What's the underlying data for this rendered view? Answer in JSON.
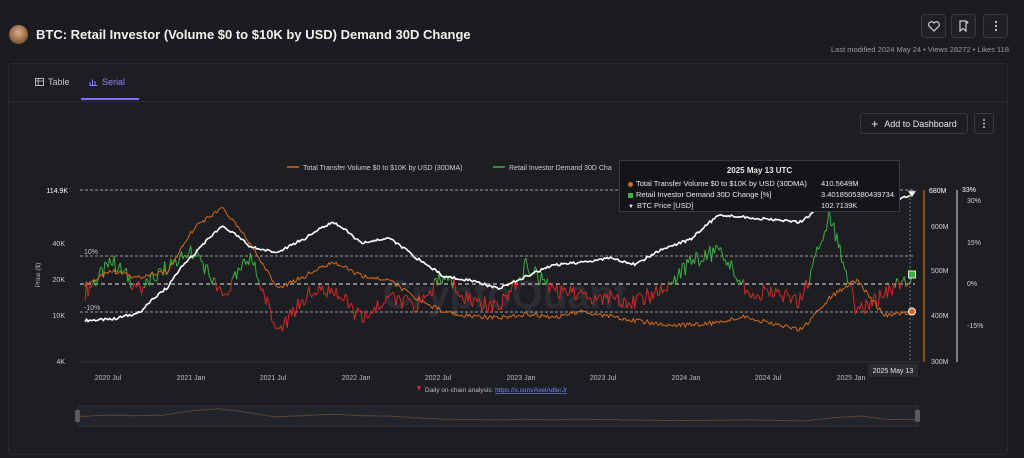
{
  "header": {
    "title": "BTC: Retail Investor (Volume $0 to $10K by USD) Demand 30D Change",
    "meta": "Last modified 2024 May 24 • Views 28272 • Likes 118",
    "heart_icon": "heart-icon",
    "bookmark_icon": "bookmark-icon",
    "more_icon": "more-vertical-icon"
  },
  "tabs": [
    {
      "label": "Table",
      "icon": "table-icon",
      "active": false
    },
    {
      "label": "Serial",
      "icon": "chart-icon",
      "active": true
    }
  ],
  "toolbar": {
    "add_label": "Add to Dashboard"
  },
  "legend": {
    "series1": "Total Transfer Volume $0 to $10K by USD (30DMA)",
    "series2": "Retail Investor Demand 30D Cha"
  },
  "tooltip": {
    "title": "2025 May 13 UTC",
    "rows": [
      {
        "label": "Total Transfer Volume $0 to $10K by USD (30DMA)",
        "value": "410.5649M",
        "color": "#d2691e"
      },
      {
        "label": "Retail Investor Demand 30D Change [%]",
        "value": "3.4018505380439734",
        "color": "#3cb043"
      },
      {
        "label": "BTC Price [USD]",
        "value": "102.7139K",
        "color": "#ffffff"
      }
    ]
  },
  "footer": {
    "source_prefix": "Daily on-chain analysis: ",
    "source_link": "https://x.com/AxelAdlerJr",
    "crosshair_date": "2025 May 13",
    "watermark": "CryptoQuant"
  },
  "chart_data": {
    "type": "line",
    "x_ticks": [
      "2020 Jul",
      "2021 Jan",
      "2021 Jul",
      "2022 Jan",
      "2022 Jul",
      "2023 Jan",
      "2023 Jul",
      "2024 Jan",
      "2024 Jul",
      "2025 Jan"
    ],
    "price_axis": {
      "label": "Price ($)",
      "ticks": [
        "4K",
        "10K",
        "20K",
        "40K"
      ],
      "max_label": "114.9K",
      "scale": "log"
    },
    "volume_axis": {
      "ticks": [
        "300M",
        "400M",
        "500M",
        "600M"
      ],
      "max_label": "680M"
    },
    "pct_axis": {
      "ticks": [
        "-15%",
        "0%",
        "15%",
        "30%"
      ],
      "max_label": "33%"
    },
    "bands": [
      "10%",
      "-10%"
    ],
    "series": [
      {
        "name": "Total Transfer Volume $0 to $10K by USD (30DMA)",
        "color": "#d2691e",
        "x": [
          "2020-05",
          "2020-07",
          "2020-09",
          "2020-11",
          "2021-01",
          "2021-03",
          "2021-05",
          "2021-07",
          "2021-09",
          "2021-11",
          "2022-01",
          "2022-03",
          "2022-05",
          "2022-07",
          "2022-09",
          "2022-11",
          "2023-01",
          "2023-03",
          "2023-05",
          "2023-07",
          "2023-09",
          "2023-11",
          "2024-01",
          "2024-03",
          "2024-05",
          "2024-07",
          "2024-09",
          "2024-11",
          "2025-01",
          "2025-03",
          "2025-05"
        ],
        "values": [
          470,
          500,
          485,
          500,
          600,
          640,
          560,
          460,
          490,
          520,
          490,
          480,
          440,
          410,
          400,
          395,
          405,
          395,
          410,
          400,
          390,
          380,
          380,
          385,
          400,
          380,
          370,
          440,
          480,
          400,
          410
        ]
      },
      {
        "name": "Retail Investor Demand 30D Change [%]",
        "color_pos": "#3cb043",
        "color_neg": "#d62828",
        "x": [
          "2020-05",
          "2020-07",
          "2020-09",
          "2020-11",
          "2021-01",
          "2021-03",
          "2021-05",
          "2021-07",
          "2021-09",
          "2021-11",
          "2022-01",
          "2022-03",
          "2022-05",
          "2022-07",
          "2022-09",
          "2022-11",
          "2023-01",
          "2023-03",
          "2023-05",
          "2023-07",
          "2023-09",
          "2023-11",
          "2024-01",
          "2024-03",
          "2024-05",
          "2024-07",
          "2024-09",
          "2024-11",
          "2025-01",
          "2025-03",
          "2025-05"
        ],
        "values": [
          -3,
          8,
          -2,
          6,
          12,
          -5,
          10,
          -18,
          -4,
          -2,
          -12,
          -5,
          -8,
          3,
          -6,
          -9,
          7,
          -3,
          -4,
          -5,
          -6,
          -2,
          8,
          12,
          -2,
          -4,
          -6,
          25,
          -10,
          -4,
          3.4
        ]
      },
      {
        "name": "BTC Price [USD]",
        "color": "#ffffff",
        "x": [
          "2020-05",
          "2020-07",
          "2020-09",
          "2020-11",
          "2021-01",
          "2021-03",
          "2021-05",
          "2021-07",
          "2021-09",
          "2021-11",
          "2022-01",
          "2022-03",
          "2022-05",
          "2022-07",
          "2022-09",
          "2022-11",
          "2023-01",
          "2023-03",
          "2023-05",
          "2023-07",
          "2023-09",
          "2023-11",
          "2024-01",
          "2024-03",
          "2024-05",
          "2024-07",
          "2024-09",
          "2024-11",
          "2025-01",
          "2025-03",
          "2025-05"
        ],
        "values": [
          9000,
          9200,
          10500,
          17000,
          33000,
          55000,
          37000,
          33000,
          44000,
          60000,
          40000,
          44000,
          30000,
          21000,
          19500,
          16500,
          21000,
          26000,
          27500,
          30000,
          26500,
          36000,
          43000,
          68000,
          66000,
          62000,
          60000,
          90000,
          100000,
          83000,
          102714
        ]
      }
    ]
  }
}
